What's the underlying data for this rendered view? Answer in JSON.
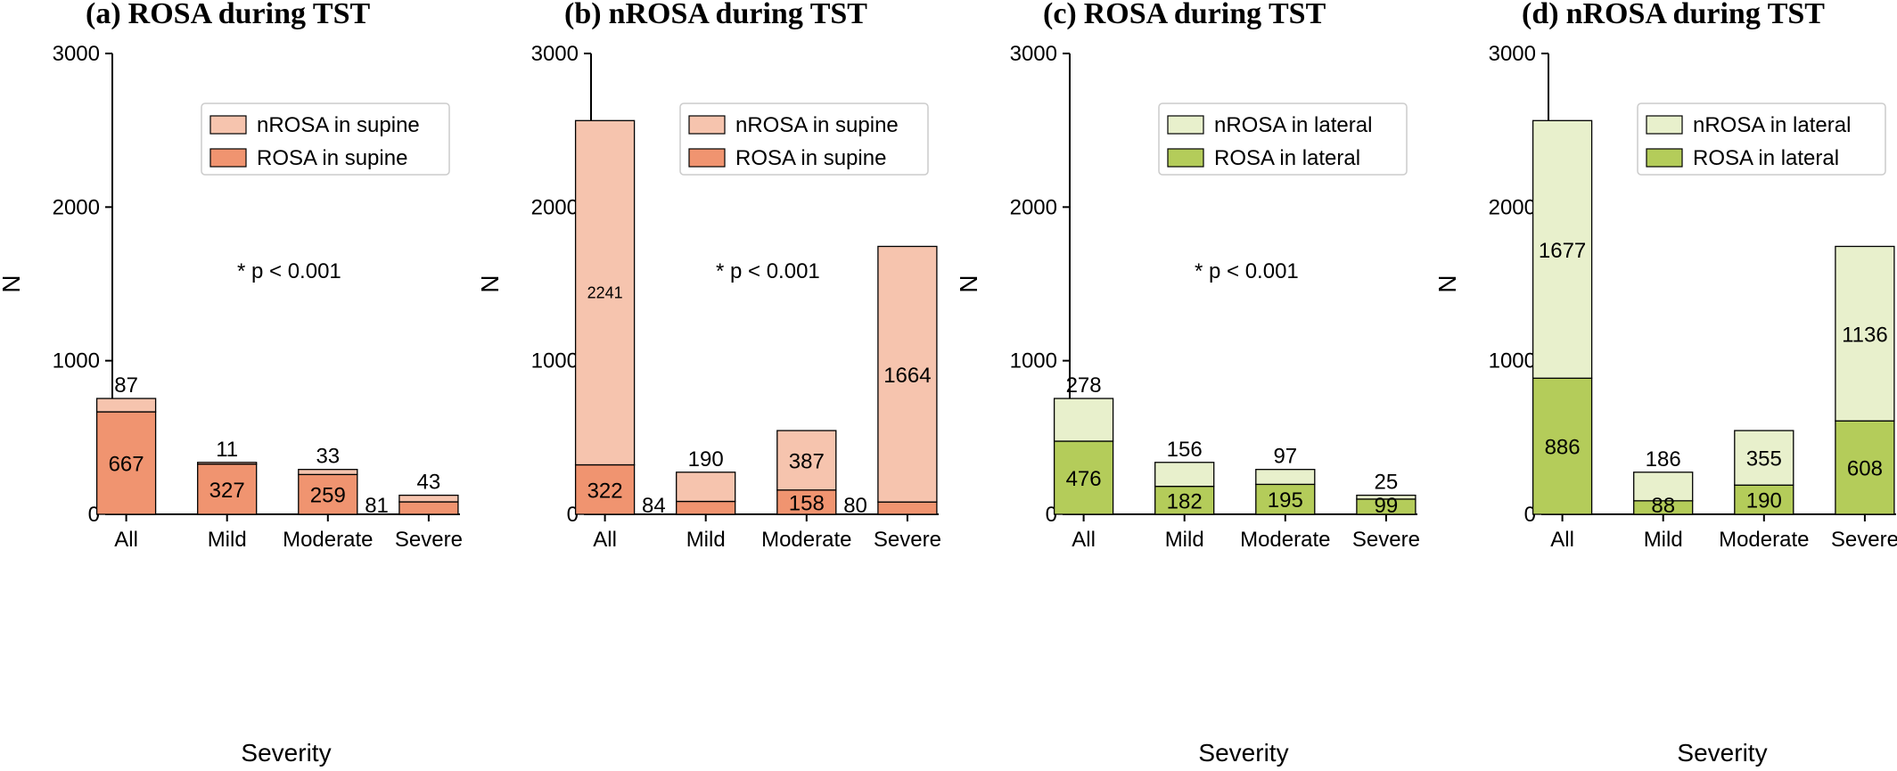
{
  "chart_data": [
    {
      "type": "bar",
      "panel_label": "(a)",
      "title": "ROSA during TST",
      "xlabel": "Severity",
      "ylabel": "N",
      "ylim": [
        0,
        3000
      ],
      "yticks": [
        "0",
        "1000",
        "2000",
        "3000"
      ],
      "categories": [
        "All",
        "Mild",
        "Moderate",
        "Severe"
      ],
      "stacked": true,
      "annotation": "* p < 0.001",
      "legend_position": "upper-right",
      "series": [
        {
          "name": "ROSA in supine",
          "color": "#f09470",
          "values": [
            667,
            327,
            259,
            81
          ],
          "labels": [
            "667",
            "327",
            "259",
            "81"
          ]
        },
        {
          "name": "nROSA in supine",
          "color": "#f6c4ae",
          "values": [
            87,
            11,
            33,
            43
          ],
          "labels": [
            "87",
            "11",
            "33",
            "43"
          ]
        }
      ]
    },
    {
      "type": "bar",
      "panel_label": "(b)",
      "title": "nROSA during TST",
      "xlabel": "",
      "ylabel": "N",
      "ylim": [
        0,
        3000
      ],
      "yticks": [
        "0",
        "1000",
        "2000",
        "3000"
      ],
      "categories": [
        "All",
        "Mild",
        "Moderate",
        "Severe"
      ],
      "stacked": true,
      "annotation": "* p < 0.001",
      "legend_position": "upper-right",
      "series": [
        {
          "name": "ROSA in supine",
          "color": "#f09470",
          "values": [
            322,
            84,
            158,
            80
          ],
          "labels": [
            "322",
            "84",
            "158",
            "80"
          ]
        },
        {
          "name": "nROSA in supine",
          "color": "#f6c4ae",
          "values": [
            2241,
            190,
            387,
            1664
          ],
          "labels": [
            "2241",
            "190",
            "387",
            "1664"
          ]
        }
      ]
    },
    {
      "type": "bar",
      "panel_label": "(c)",
      "title": "ROSA during TST",
      "xlabel": "Severity",
      "ylabel": "N",
      "ylim": [
        0,
        3000
      ],
      "yticks": [
        "0",
        "1000",
        "2000",
        "3000"
      ],
      "categories": [
        "All",
        "Mild",
        "Moderate",
        "Severe"
      ],
      "stacked": true,
      "annotation": "* p < 0.001",
      "legend_position": "upper-right",
      "series": [
        {
          "name": "ROSA in lateral",
          "color": "#b4cc5a",
          "values": [
            476,
            182,
            195,
            99
          ],
          "labels": [
            "476",
            "182",
            "195",
            "99"
          ]
        },
        {
          "name": "nROSA in lateral",
          "color": "#e8f0cc",
          "values": [
            278,
            156,
            97,
            25
          ],
          "labels": [
            "278",
            "156",
            "97",
            "25"
          ]
        }
      ]
    },
    {
      "type": "bar",
      "panel_label": "(d)",
      "title": "nROSA during TST",
      "xlabel": "Severity",
      "ylabel": "N",
      "ylim": [
        0,
        3000
      ],
      "yticks": [
        "0",
        "1000",
        "2000",
        "3000"
      ],
      "categories": [
        "All",
        "Mild",
        "Moderate",
        "Severe"
      ],
      "stacked": true,
      "annotation": "",
      "legend_position": "upper-right",
      "series": [
        {
          "name": "ROSA in lateral",
          "color": "#b4cc5a",
          "values": [
            886,
            88,
            190,
            608
          ],
          "labels": [
            "886",
            "88",
            "190",
            "608"
          ]
        },
        {
          "name": "nROSA in lateral",
          "color": "#e8f0cc",
          "values": [
            1677,
            186,
            355,
            1136
          ],
          "labels": [
            "1677",
            "186",
            "355",
            "1136"
          ]
        }
      ]
    }
  ]
}
